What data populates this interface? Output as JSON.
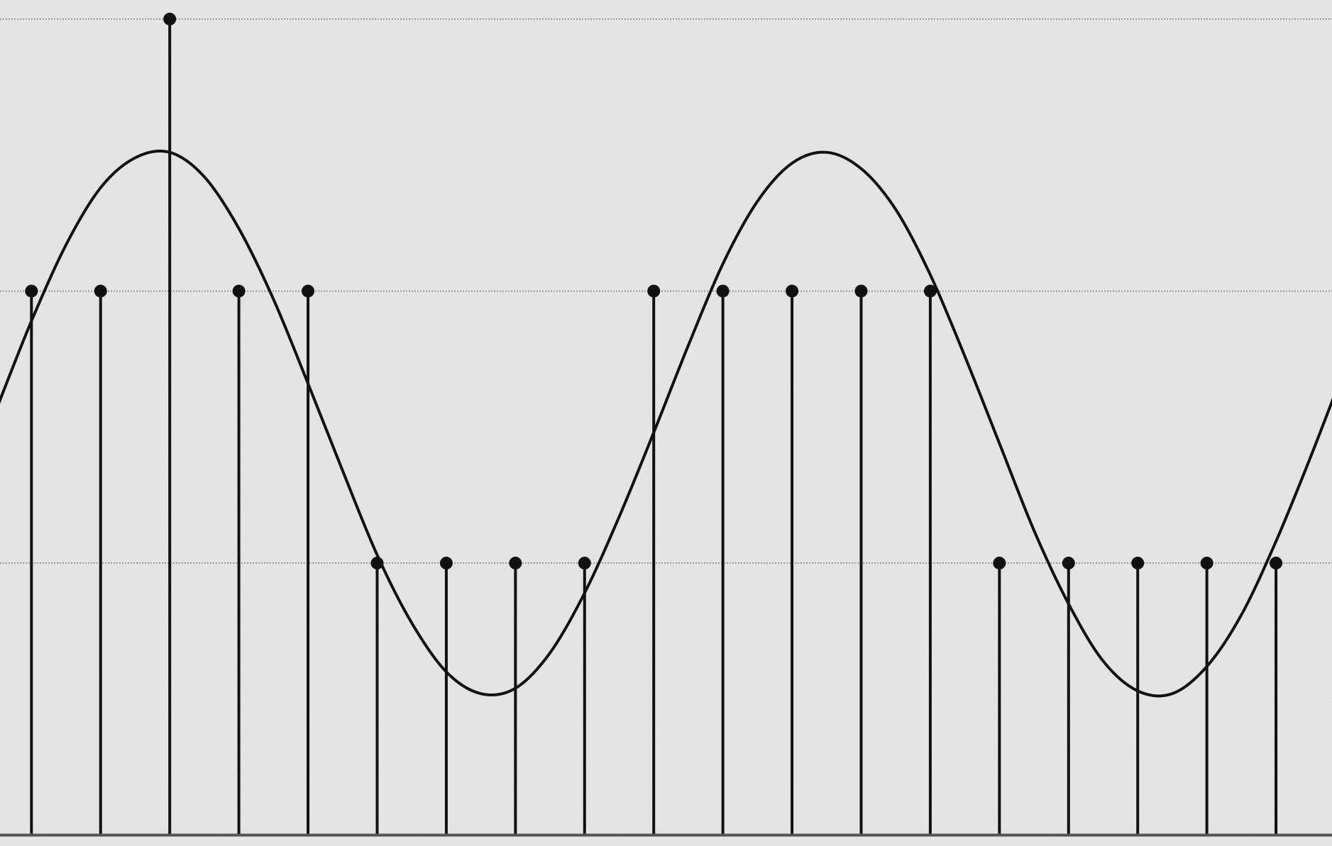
{
  "chart_data": {
    "type": "stem",
    "grid": true,
    "xlim": [
      -0.455,
      18.81
    ],
    "ylim": [
      -0.04,
      3.07
    ],
    "yticks": [
      0,
      1,
      2,
      3
    ],
    "series": [
      {
        "type": "stem",
        "color": "#111111",
        "x": [
          0,
          1,
          2,
          3,
          4,
          5,
          6,
          7,
          8,
          9,
          10,
          11,
          12,
          13,
          14,
          15,
          16,
          17,
          18
        ],
        "values": [
          2,
          2,
          3,
          2,
          2,
          1,
          1,
          1,
          1,
          2,
          2,
          2,
          2,
          2,
          1,
          1,
          1,
          1,
          1
        ]
      },
      {
        "type": "line",
        "color": "#111111",
        "x": [
          -0.5,
          0,
          0.5,
          1,
          1.5,
          2,
          2.5,
          3,
          3.5,
          4,
          4.5,
          5,
          5.5,
          6,
          6.5,
          7,
          7.5,
          8,
          8.5,
          9,
          9.5,
          10,
          10.5,
          11,
          11.5,
          12,
          12.5,
          13,
          13.5,
          14,
          14.5,
          15,
          15.5,
          16,
          16.5,
          17,
          17.5,
          18,
          18.5,
          19
        ],
        "values": [
          1.57,
          1.89,
          2.17,
          2.38,
          2.49,
          2.51,
          2.42,
          2.23,
          1.97,
          1.66,
          1.34,
          1.03,
          0.78,
          0.6,
          0.52,
          0.54,
          0.67,
          0.89,
          1.17,
          1.48,
          1.8,
          2.1,
          2.33,
          2.47,
          2.51,
          2.45,
          2.3,
          2.06,
          1.76,
          1.44,
          1.12,
          0.85,
          0.64,
          0.53,
          0.52,
          0.62,
          0.81,
          1.08,
          1.39,
          1.72
        ]
      }
    ]
  }
}
